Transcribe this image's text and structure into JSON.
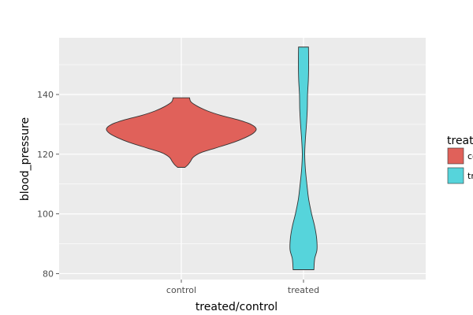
{
  "chart_data": {
    "type": "violin",
    "xlabel": "treated/control",
    "ylabel": "blood_pressure",
    "categories": [
      "control",
      "treated"
    ],
    "ylim": [
      78,
      159
    ],
    "y_ticks": [
      80,
      100,
      120,
      140
    ],
    "grid": true,
    "legend": {
      "title": "treated/control",
      "placement": "right",
      "entries": [
        {
          "label": "control",
          "color": "#E0615A"
        },
        {
          "label": "treated",
          "color": "#56D4DB"
        }
      ]
    },
    "series": [
      {
        "category": "control",
        "color": "#E0615A",
        "y_min": 115.6,
        "y_max": 138.9,
        "density_profile": [
          [
            115.6,
            0.05
          ],
          [
            116.5,
            0.09
          ],
          [
            117.5,
            0.12
          ],
          [
            119.0,
            0.16
          ],
          [
            120.5,
            0.26
          ],
          [
            122.0,
            0.45
          ],
          [
            124.0,
            0.7
          ],
          [
            125.5,
            0.85
          ],
          [
            127.0,
            0.96
          ],
          [
            128.5,
            1.0
          ],
          [
            130.0,
            0.93
          ],
          [
            131.5,
            0.76
          ],
          [
            133.0,
            0.53
          ],
          [
            134.5,
            0.35
          ],
          [
            136.0,
            0.22
          ],
          [
            137.5,
            0.13
          ],
          [
            138.9,
            0.11
          ]
        ]
      },
      {
        "category": "treated",
        "color": "#56D4DB",
        "y_min": 81.3,
        "y_max": 155.9,
        "density_profile": [
          [
            81.3,
            0.77
          ],
          [
            85.0,
            0.83
          ],
          [
            88.0,
            1.0
          ],
          [
            92.0,
            0.97
          ],
          [
            96.0,
            0.82
          ],
          [
            100.0,
            0.6
          ],
          [
            105.0,
            0.38
          ],
          [
            110.0,
            0.25
          ],
          [
            115.0,
            0.14
          ],
          [
            120.0,
            0.09
          ],
          [
            125.0,
            0.14
          ],
          [
            130.0,
            0.22
          ],
          [
            135.0,
            0.28
          ],
          [
            140.0,
            0.3
          ],
          [
            145.0,
            0.36
          ],
          [
            150.0,
            0.38
          ],
          [
            155.9,
            0.37
          ]
        ]
      }
    ]
  }
}
